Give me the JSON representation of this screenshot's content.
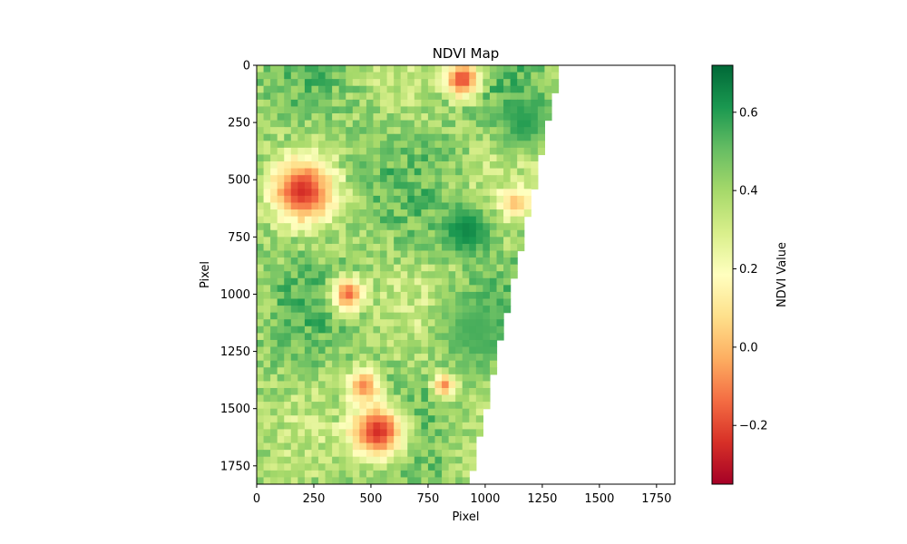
{
  "chart_data": {
    "type": "heatmap",
    "title": "NDVI Map",
    "xlabel": "Pixel",
    "ylabel": "Pixel",
    "xlim": [
      0,
      1830
    ],
    "ylim": [
      1830,
      0
    ],
    "xticks": [
      0,
      250,
      500,
      750,
      1000,
      1250,
      1500,
      1750
    ],
    "yticks": [
      0,
      250,
      500,
      750,
      1000,
      1250,
      1500,
      1750
    ],
    "grid": false,
    "colormap": "RdYlGn",
    "colormap_stops": [
      "#a50026",
      "#d73027",
      "#f46d43",
      "#fdae61",
      "#fee08b",
      "#ffffbf",
      "#d9ef8b",
      "#a6d96a",
      "#66bd63",
      "#1a9850",
      "#006837"
    ],
    "colorbar": {
      "label": "NDVI Value",
      "range": [
        -0.35,
        0.72
      ],
      "ticks": [
        -0.2,
        0.0,
        0.2,
        0.4,
        0.6
      ],
      "tick_labels": [
        "−0.2",
        "0.0",
        "0.2",
        "0.4",
        "0.6"
      ],
      "placement": "right"
    },
    "data_footprint_polygon": [
      [
        0,
        0
      ],
      [
        1330,
        0
      ],
      [
        930,
        1830
      ],
      [
        0,
        1830
      ]
    ],
    "no_data_region": "right side (white)",
    "low_ndvi_patches": [
      {
        "cx": 900,
        "cy": 60,
        "r": 80,
        "value": -0.2
      },
      {
        "cx": 200,
        "cy": 550,
        "r": 130,
        "value": -0.25
      },
      {
        "cx": 400,
        "cy": 1000,
        "r": 70,
        "value": -0.15
      },
      {
        "cx": 470,
        "cy": 1400,
        "r": 70,
        "value": -0.1
      },
      {
        "cx": 530,
        "cy": 1600,
        "r": 120,
        "value": -0.25
      },
      {
        "cx": 1130,
        "cy": 600,
        "r": 60,
        "value": 0.0
      },
      {
        "cx": 820,
        "cy": 1400,
        "r": 50,
        "value": -0.1
      }
    ],
    "high_ndvi_patches": [
      {
        "cx": 920,
        "cy": 720,
        "r": 110,
        "value": 0.65
      },
      {
        "cx": 1170,
        "cy": 250,
        "r": 110,
        "value": 0.6
      },
      {
        "cx": 950,
        "cy": 1150,
        "r": 150,
        "value": 0.55
      }
    ]
  }
}
